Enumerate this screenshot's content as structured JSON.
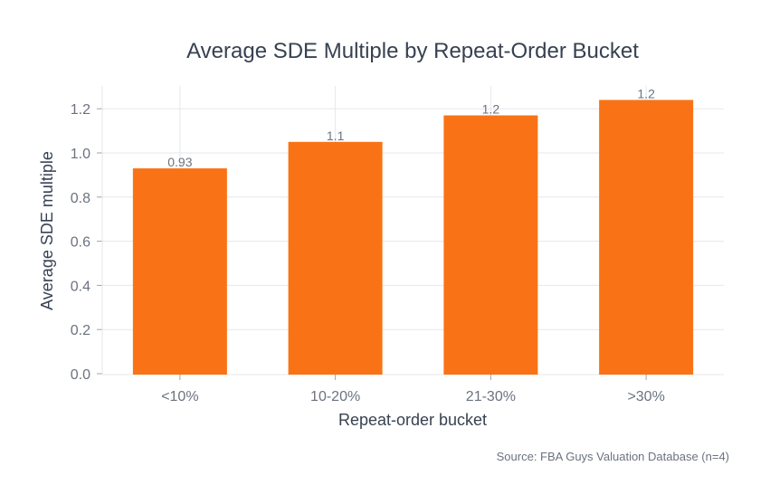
{
  "chart_data": {
    "type": "bar",
    "title": "Average SDE Multiple by Repeat-Order Bucket",
    "xlabel": "Repeat-order bucket",
    "ylabel": "Average SDE multiple",
    "categories": [
      "<10%",
      "10-20%",
      "21-30%",
      ">30%"
    ],
    "values": [
      0.93,
      1.05,
      1.17,
      1.24
    ],
    "data_labels": [
      "0.93",
      "1.1",
      "1.2",
      "1.2"
    ],
    "ylim": [
      0,
      1.3
    ],
    "yticks": [
      "0.0",
      "0.2",
      "0.4",
      "0.6",
      "0.8",
      "1.0",
      "1.2"
    ],
    "grid": true,
    "bar_color": "#f97316",
    "source": "Source: FBA Guys Valuation Database (n=4)"
  }
}
